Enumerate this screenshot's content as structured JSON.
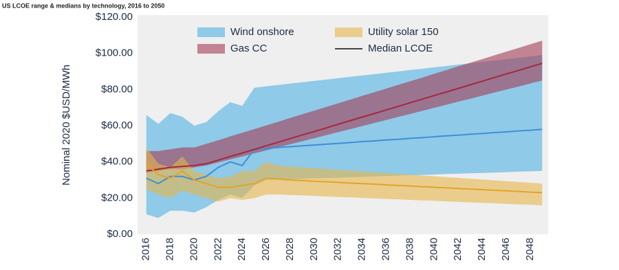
{
  "chart_data": {
    "type": "band-line",
    "title": "US LCOE range & medians by technology, 2016 to 2050",
    "y_label": "Nominal 2020 $USD/MWh",
    "x": [
      2016,
      2017,
      2018,
      2019,
      2020,
      2021,
      2022,
      2023,
      2024,
      2025,
      2026,
      2027,
      2028,
      2029,
      2030,
      2031,
      2032,
      2033,
      2034,
      2035,
      2036,
      2037,
      2038,
      2039,
      2040,
      2041,
      2042,
      2043,
      2044,
      2045,
      2046,
      2047,
      2048,
      2049
    ],
    "xlim": [
      2015.5,
      2049.5
    ],
    "xticks": [
      2016,
      2018,
      2020,
      2022,
      2024,
      2026,
      2028,
      2030,
      2032,
      2034,
      2036,
      2038,
      2040,
      2042,
      2044,
      2046,
      2048
    ],
    "ylim": [
      0,
      120
    ],
    "yticks": [
      {
        "value": 0,
        "label": "$0.00"
      },
      {
        "value": 20,
        "label": "$20.00"
      },
      {
        "value": 40,
        "label": "$40.00"
      },
      {
        "value": 60,
        "label": "$60.00"
      },
      {
        "value": 80,
        "label": "$80.00"
      },
      {
        "value": 100,
        "label": "$100.00"
      },
      {
        "value": 120,
        "label": "$120.00"
      }
    ],
    "bands": [
      {
        "name": "Wind onshore",
        "color": "#4fb0e2",
        "high": [
          66,
          61,
          67,
          65,
          60,
          62,
          68,
          73,
          71,
          81,
          81.8,
          82.5,
          83.3,
          84,
          84.8,
          85.5,
          86.3,
          87,
          87.8,
          88.5,
          89.3,
          90,
          90.8,
          91.5,
          92.3,
          93,
          93.8,
          94.5,
          95.3,
          96,
          96.8,
          97.5,
          98.3,
          99
        ],
        "low": [
          11,
          9,
          13,
          13,
          12,
          15,
          19,
          22,
          20,
          27,
          30,
          30.2,
          30.4,
          30.7,
          30.9,
          31.1,
          31.3,
          31.5,
          31.7,
          32,
          32.2,
          32.4,
          32.6,
          32.8,
          33,
          33.3,
          33.5,
          33.7,
          33.9,
          34.1,
          34.3,
          34.6,
          34.8,
          35
        ]
      },
      {
        "name": "Gas CC",
        "color": "#a33a55",
        "high": [
          46,
          46,
          47,
          48,
          48,
          50,
          52,
          54.1,
          56.1,
          58.1,
          60.2,
          62.2,
          64.3,
          66.3,
          68.3,
          70.4,
          72.4,
          74.4,
          76.5,
          78.5,
          80.5,
          82.6,
          84.6,
          86.6,
          88.7,
          90.7,
          92.8,
          94.8,
          96.8,
          98.9,
          100.9,
          102.9,
          105,
          107
        ],
        "low": [
          34,
          35,
          36,
          36,
          37,
          38,
          39.7,
          41.4,
          43,
          44.7,
          46.4,
          48.1,
          49.8,
          51.4,
          53.1,
          54.8,
          56.5,
          58.1,
          59.8,
          61.5,
          63.2,
          64.9,
          66.5,
          68.2,
          69.9,
          71.6,
          73.3,
          74.9,
          76.6,
          78.3,
          80,
          81.6,
          83.3,
          85
        ]
      },
      {
        "name": "Utility solar 150",
        "color": "#e6b64a",
        "high": [
          48,
          39,
          37,
          43,
          35,
          33,
          31,
          32,
          35,
          35,
          40,
          38,
          37.5,
          37,
          36.6,
          36.1,
          35.7,
          35.2,
          34.8,
          34.3,
          33.9,
          33.4,
          33,
          32.5,
          32.1,
          31.6,
          31.2,
          30.7,
          30.3,
          29.8,
          29.4,
          28.9,
          28.5,
          28
        ],
        "low": [
          25,
          22,
          20,
          24,
          22,
          20,
          18,
          20,
          19,
          20,
          22,
          22,
          21.7,
          21.5,
          21.2,
          20.9,
          20.6,
          20.4,
          20.1,
          19.8,
          19.5,
          19.3,
          19,
          18.7,
          18.5,
          18.2,
          17.9,
          17.6,
          17.4,
          17.1,
          16.8,
          16.5,
          16.3,
          16
        ]
      }
    ],
    "series": [
      {
        "color": "#3d8fd8",
        "values": [
          31,
          28,
          32,
          32,
          30,
          32,
          37,
          40,
          38,
          47,
          47.5,
          48,
          48.4,
          48.9,
          49.3,
          49.8,
          50.2,
          50.7,
          51.2,
          51.6,
          52.1,
          52.5,
          53,
          53.4,
          53.9,
          54.4,
          54.8,
          55.3,
          55.7,
          56.2,
          56.6,
          57.1,
          57.5,
          58
        ]
      },
      {
        "color": "#a4283c",
        "values": [
          35,
          36,
          37,
          37.5,
          38,
          39,
          41,
          43,
          44.9,
          46.9,
          48.9,
          50.9,
          52.9,
          54.9,
          56.8,
          58.8,
          60.8,
          62.8,
          64.8,
          66.7,
          68.7,
          70.7,
          72.7,
          74.7,
          76.7,
          78.6,
          80.6,
          82.6,
          84.6,
          86.6,
          88.6,
          90.5,
          92.5,
          94.5
        ]
      },
      {
        "color": "#e3a32a",
        "values": [
          39,
          33,
          31,
          35,
          30,
          28,
          26,
          26,
          27,
          28,
          31,
          30.5,
          30,
          29.7,
          29.3,
          29,
          28.7,
          28.3,
          28,
          27.7,
          27.3,
          27,
          26.7,
          26.3,
          26,
          25.7,
          25.3,
          25,
          24.7,
          24.3,
          24,
          23.7,
          23.3,
          23
        ]
      }
    ],
    "median_legend": {
      "label": "Median LCOE",
      "color": "#444444"
    }
  }
}
